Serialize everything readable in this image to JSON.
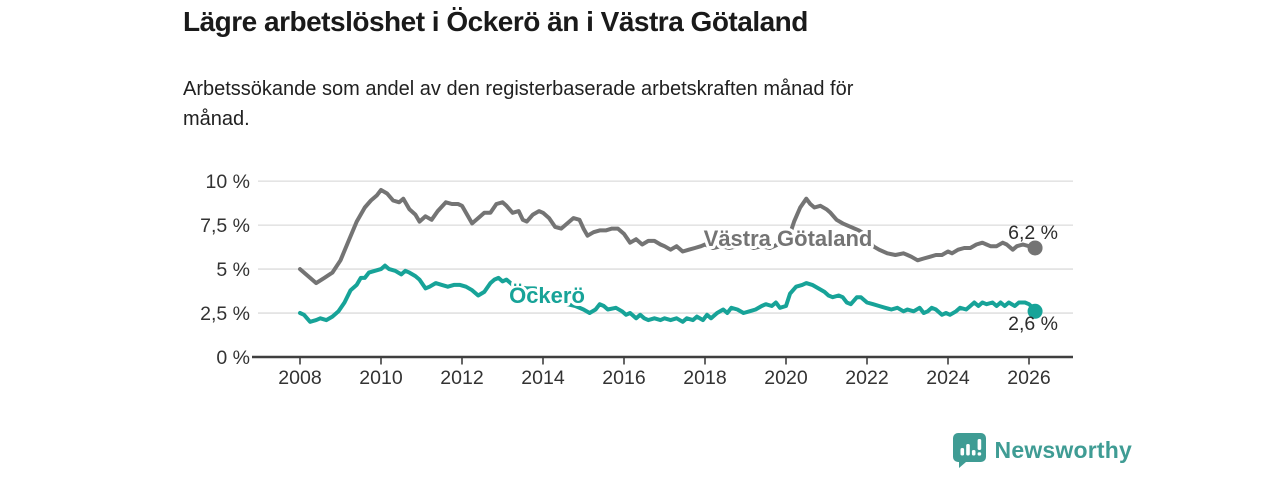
{
  "header": {
    "title": "Lägre arbetslöshet i Öckerö än i Västra Götaland",
    "subtitle_lines": [
      "Arbetssökande som andel av den registerbaserade arbetskraften månad för",
      "månad."
    ]
  },
  "footer": {
    "brand": "Newsworthy",
    "brand_color": "#3f9c94",
    "logo_icon": "bar-chart-speech-bubble-icon"
  },
  "colors": {
    "series_vastra_gotaland": "#747474",
    "series_ockero": "#17a398",
    "gridline": "#dcdcdc",
    "axis_line": "#3f3f3f",
    "axis_text": "#333333",
    "value_label_text": "#2d2d2d",
    "background": "#ffffff"
  },
  "chart_data": {
    "type": "line",
    "title": "Lägre arbetslöshet i Öckerö än i Västra Götaland",
    "subtitle": "Arbetssökande som andel av den registerbaserade arbetskraften månad för månad.",
    "xlabel": "",
    "ylabel": "",
    "unit": "%",
    "grid": "horizontal",
    "legend_position": "inline-labels-on-lines",
    "x_axis": {
      "ticks": [
        2008,
        2010,
        2012,
        2014,
        2016,
        2018,
        2020,
        2022,
        2024,
        2026
      ],
      "range_years": [
        2007.0,
        2027.1
      ]
    },
    "y_axis": {
      "range": [
        0,
        10
      ],
      "ticks": [
        {
          "value": 10,
          "label": "10 %"
        },
        {
          "value": 7.5,
          "label": "7,5 %"
        },
        {
          "value": 5,
          "label": "5 %"
        },
        {
          "value": 2.5,
          "label": "2,5 %"
        },
        {
          "value": 0,
          "label": "0 %"
        }
      ]
    },
    "series": [
      {
        "name": "Västra Götaland",
        "slug": "vastra-gotaland",
        "color": "#747474",
        "end_label": "6,2 %",
        "end_value": 6.2,
        "points": [
          [
            2008.0,
            5.0
          ],
          [
            2008.2,
            4.6
          ],
          [
            2008.4,
            4.2
          ],
          [
            2008.6,
            4.5
          ],
          [
            2008.8,
            4.8
          ],
          [
            2009.0,
            5.5
          ],
          [
            2009.2,
            6.6
          ],
          [
            2009.4,
            7.7
          ],
          [
            2009.6,
            8.5
          ],
          [
            2009.75,
            8.9
          ],
          [
            2009.9,
            9.2
          ],
          [
            2010.0,
            9.5
          ],
          [
            2010.15,
            9.3
          ],
          [
            2010.3,
            8.9
          ],
          [
            2010.45,
            8.8
          ],
          [
            2010.55,
            9.0
          ],
          [
            2010.7,
            8.4
          ],
          [
            2010.85,
            8.1
          ],
          [
            2010.95,
            7.7
          ],
          [
            2011.1,
            8.0
          ],
          [
            2011.25,
            7.8
          ],
          [
            2011.4,
            8.3
          ],
          [
            2011.6,
            8.8
          ],
          [
            2011.75,
            8.7
          ],
          [
            2011.9,
            8.7
          ],
          [
            2012.0,
            8.6
          ],
          [
            2012.1,
            8.2
          ],
          [
            2012.25,
            7.6
          ],
          [
            2012.4,
            7.9
          ],
          [
            2012.55,
            8.2
          ],
          [
            2012.7,
            8.2
          ],
          [
            2012.85,
            8.7
          ],
          [
            2013.0,
            8.8
          ],
          [
            2013.1,
            8.6
          ],
          [
            2013.25,
            8.2
          ],
          [
            2013.4,
            8.3
          ],
          [
            2013.5,
            7.8
          ],
          [
            2013.6,
            7.7
          ],
          [
            2013.75,
            8.1
          ],
          [
            2013.9,
            8.3
          ],
          [
            2014.0,
            8.2
          ],
          [
            2014.15,
            7.9
          ],
          [
            2014.3,
            7.4
          ],
          [
            2014.45,
            7.3
          ],
          [
            2014.6,
            7.6
          ],
          [
            2014.75,
            7.9
          ],
          [
            2014.9,
            7.8
          ],
          [
            2015.0,
            7.3
          ],
          [
            2015.1,
            6.9
          ],
          [
            2015.25,
            7.1
          ],
          [
            2015.4,
            7.2
          ],
          [
            2015.55,
            7.2
          ],
          [
            2015.7,
            7.3
          ],
          [
            2015.85,
            7.3
          ],
          [
            2016.0,
            7.0
          ],
          [
            2016.15,
            6.5
          ],
          [
            2016.3,
            6.7
          ],
          [
            2016.45,
            6.4
          ],
          [
            2016.6,
            6.6
          ],
          [
            2016.75,
            6.6
          ],
          [
            2016.9,
            6.4
          ],
          [
            2017.0,
            6.3
          ],
          [
            2017.15,
            6.1
          ],
          [
            2017.3,
            6.3
          ],
          [
            2017.45,
            6.0
          ],
          [
            2017.6,
            6.1
          ],
          [
            2017.75,
            6.2
          ],
          [
            2017.9,
            6.3
          ],
          [
            2018.0,
            6.4
          ],
          [
            2018.2,
            6.2
          ],
          [
            2018.4,
            6.3
          ],
          [
            2018.6,
            6.2
          ],
          [
            2018.8,
            6.3
          ],
          [
            2019.0,
            6.4
          ],
          [
            2019.2,
            6.2
          ],
          [
            2019.4,
            6.3
          ],
          [
            2019.6,
            6.2
          ],
          [
            2019.8,
            6.4
          ],
          [
            2020.0,
            6.5
          ],
          [
            2020.1,
            7.0
          ],
          [
            2020.2,
            7.7
          ],
          [
            2020.35,
            8.5
          ],
          [
            2020.5,
            9.0
          ],
          [
            2020.6,
            8.7
          ],
          [
            2020.7,
            8.5
          ],
          [
            2020.85,
            8.6
          ],
          [
            2021.0,
            8.4
          ],
          [
            2021.1,
            8.2
          ],
          [
            2021.25,
            7.8
          ],
          [
            2021.4,
            7.6
          ],
          [
            2021.6,
            7.4
          ],
          [
            2021.8,
            7.2
          ],
          [
            2022.0,
            6.9
          ],
          [
            2022.15,
            6.3
          ],
          [
            2022.3,
            6.1
          ],
          [
            2022.5,
            5.9
          ],
          [
            2022.7,
            5.8
          ],
          [
            2022.9,
            5.9
          ],
          [
            2023.0,
            5.8
          ],
          [
            2023.1,
            5.7
          ],
          [
            2023.25,
            5.5
          ],
          [
            2023.4,
            5.6
          ],
          [
            2023.55,
            5.7
          ],
          [
            2023.7,
            5.8
          ],
          [
            2023.85,
            5.8
          ],
          [
            2024.0,
            6.0
          ],
          [
            2024.1,
            5.9
          ],
          [
            2024.25,
            6.1
          ],
          [
            2024.4,
            6.2
          ],
          [
            2024.55,
            6.2
          ],
          [
            2024.7,
            6.4
          ],
          [
            2024.85,
            6.5
          ],
          [
            2024.95,
            6.4
          ],
          [
            2025.05,
            6.3
          ],
          [
            2025.2,
            6.3
          ],
          [
            2025.35,
            6.5
          ],
          [
            2025.45,
            6.4
          ],
          [
            2025.6,
            6.1
          ],
          [
            2025.7,
            6.3
          ],
          [
            2025.85,
            6.4
          ],
          [
            2026.0,
            6.3
          ],
          [
            2026.15,
            6.2
          ]
        ]
      },
      {
        "name": "Öckerö",
        "slug": "ockero",
        "color": "#17a398",
        "end_label": "2,6 %",
        "end_value": 2.6,
        "points": [
          [
            2008.0,
            2.5
          ],
          [
            2008.1,
            2.4
          ],
          [
            2008.25,
            2.0
          ],
          [
            2008.4,
            2.1
          ],
          [
            2008.5,
            2.2
          ],
          [
            2008.65,
            2.1
          ],
          [
            2008.8,
            2.3
          ],
          [
            2008.95,
            2.6
          ],
          [
            2009.1,
            3.1
          ],
          [
            2009.25,
            3.8
          ],
          [
            2009.4,
            4.1
          ],
          [
            2009.5,
            4.5
          ],
          [
            2009.6,
            4.5
          ],
          [
            2009.7,
            4.8
          ],
          [
            2009.85,
            4.9
          ],
          [
            2010.0,
            5.0
          ],
          [
            2010.1,
            5.2
          ],
          [
            2010.2,
            5.0
          ],
          [
            2010.35,
            4.9
          ],
          [
            2010.5,
            4.7
          ],
          [
            2010.6,
            4.9
          ],
          [
            2010.7,
            4.8
          ],
          [
            2010.85,
            4.6
          ],
          [
            2010.95,
            4.4
          ],
          [
            2011.1,
            3.9
          ],
          [
            2011.2,
            4.0
          ],
          [
            2011.35,
            4.2
          ],
          [
            2011.5,
            4.1
          ],
          [
            2011.65,
            4.0
          ],
          [
            2011.8,
            4.1
          ],
          [
            2011.95,
            4.1
          ],
          [
            2012.1,
            4.0
          ],
          [
            2012.25,
            3.8
          ],
          [
            2012.4,
            3.5
          ],
          [
            2012.55,
            3.7
          ],
          [
            2012.7,
            4.2
          ],
          [
            2012.8,
            4.4
          ],
          [
            2012.9,
            4.5
          ],
          [
            2013.0,
            4.3
          ],
          [
            2013.1,
            4.4
          ],
          [
            2013.25,
            4.1
          ],
          [
            2013.4,
            4.0
          ],
          [
            2013.6,
            3.9
          ],
          [
            2013.8,
            3.9
          ],
          [
            2014.0,
            3.8
          ],
          [
            2014.2,
            3.5
          ],
          [
            2014.4,
            3.2
          ],
          [
            2014.6,
            3.0
          ],
          [
            2014.8,
            2.9
          ],
          [
            2015.0,
            2.7
          ],
          [
            2015.15,
            2.5
          ],
          [
            2015.3,
            2.7
          ],
          [
            2015.4,
            3.0
          ],
          [
            2015.5,
            2.9
          ],
          [
            2015.6,
            2.7
          ],
          [
            2015.8,
            2.8
          ],
          [
            2015.95,
            2.6
          ],
          [
            2016.05,
            2.4
          ],
          [
            2016.15,
            2.5
          ],
          [
            2016.3,
            2.2
          ],
          [
            2016.4,
            2.4
          ],
          [
            2016.5,
            2.2
          ],
          [
            2016.6,
            2.1
          ],
          [
            2016.75,
            2.2
          ],
          [
            2016.9,
            2.1
          ],
          [
            2017.0,
            2.2
          ],
          [
            2017.15,
            2.1
          ],
          [
            2017.3,
            2.2
          ],
          [
            2017.45,
            2.0
          ],
          [
            2017.55,
            2.2
          ],
          [
            2017.7,
            2.1
          ],
          [
            2017.8,
            2.3
          ],
          [
            2017.95,
            2.1
          ],
          [
            2018.05,
            2.4
          ],
          [
            2018.15,
            2.2
          ],
          [
            2018.3,
            2.5
          ],
          [
            2018.45,
            2.7
          ],
          [
            2018.55,
            2.5
          ],
          [
            2018.65,
            2.8
          ],
          [
            2018.8,
            2.7
          ],
          [
            2018.95,
            2.5
          ],
          [
            2019.1,
            2.6
          ],
          [
            2019.25,
            2.7
          ],
          [
            2019.4,
            2.9
          ],
          [
            2019.5,
            3.0
          ],
          [
            2019.65,
            2.9
          ],
          [
            2019.75,
            3.1
          ],
          [
            2019.85,
            2.8
          ],
          [
            2020.0,
            2.9
          ],
          [
            2020.1,
            3.6
          ],
          [
            2020.25,
            4.0
          ],
          [
            2020.4,
            4.1
          ],
          [
            2020.5,
            4.2
          ],
          [
            2020.65,
            4.1
          ],
          [
            2020.8,
            3.9
          ],
          [
            2020.95,
            3.7
          ],
          [
            2021.05,
            3.5
          ],
          [
            2021.15,
            3.4
          ],
          [
            2021.3,
            3.5
          ],
          [
            2021.4,
            3.4
          ],
          [
            2021.5,
            3.1
          ],
          [
            2021.6,
            3.0
          ],
          [
            2021.75,
            3.4
          ],
          [
            2021.85,
            3.4
          ],
          [
            2022.0,
            3.1
          ],
          [
            2022.15,
            3.0
          ],
          [
            2022.3,
            2.9
          ],
          [
            2022.45,
            2.8
          ],
          [
            2022.6,
            2.7
          ],
          [
            2022.75,
            2.8
          ],
          [
            2022.9,
            2.6
          ],
          [
            2023.0,
            2.7
          ],
          [
            2023.15,
            2.6
          ],
          [
            2023.3,
            2.8
          ],
          [
            2023.4,
            2.5
          ],
          [
            2023.5,
            2.6
          ],
          [
            2023.6,
            2.8
          ],
          [
            2023.7,
            2.7
          ],
          [
            2023.85,
            2.4
          ],
          [
            2023.95,
            2.5
          ],
          [
            2024.05,
            2.4
          ],
          [
            2024.2,
            2.6
          ],
          [
            2024.3,
            2.8
          ],
          [
            2024.45,
            2.7
          ],
          [
            2024.55,
            2.9
          ],
          [
            2024.65,
            3.1
          ],
          [
            2024.75,
            2.9
          ],
          [
            2024.85,
            3.1
          ],
          [
            2024.95,
            3.0
          ],
          [
            2025.1,
            3.1
          ],
          [
            2025.2,
            2.9
          ],
          [
            2025.3,
            3.1
          ],
          [
            2025.4,
            2.9
          ],
          [
            2025.5,
            3.1
          ],
          [
            2025.65,
            2.9
          ],
          [
            2025.75,
            3.1
          ],
          [
            2025.9,
            3.1
          ],
          [
            2026.0,
            3.0
          ],
          [
            2026.1,
            2.8
          ],
          [
            2026.15,
            2.6
          ]
        ]
      }
    ]
  }
}
